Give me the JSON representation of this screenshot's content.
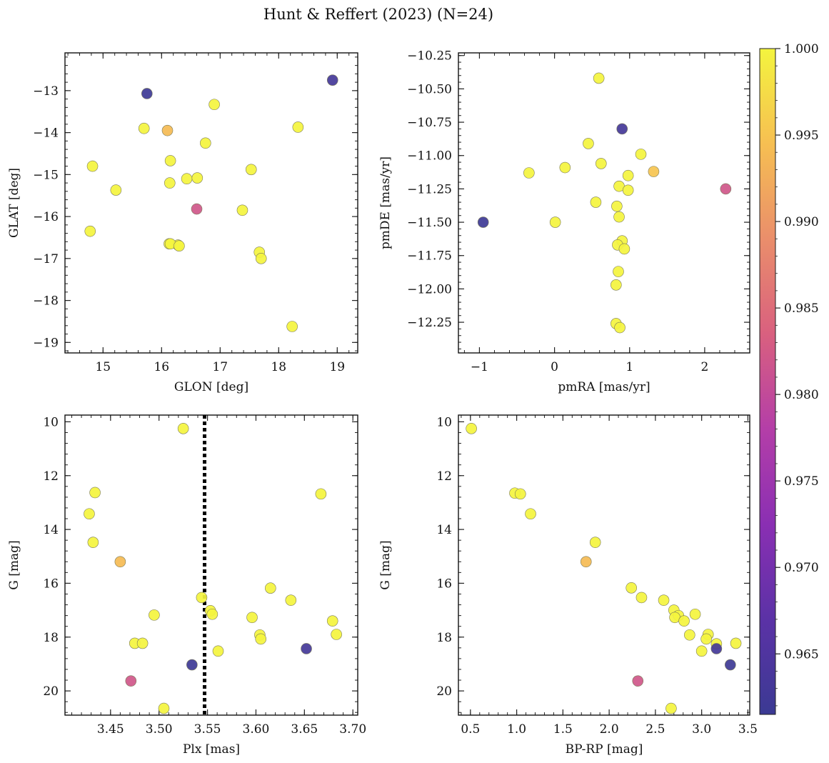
{
  "figure": {
    "title": "Hunt & Reffert (2023) (N=24)"
  },
  "colorbar": {
    "min": 0.9615,
    "max": 1.0,
    "ticks": [
      0.965,
      0.97,
      0.975,
      0.98,
      0.985,
      0.99,
      0.995,
      1.0
    ],
    "tick_labels": [
      "0.965",
      "0.970",
      "0.975",
      "0.980",
      "0.985",
      "0.990",
      "0.995",
      "1.000"
    ],
    "colormap": "plasma",
    "colormap_stops": [
      "#3b3a93",
      "#5b32a6",
      "#8a2fb3",
      "#b43ea8",
      "#d9607f",
      "#ea8e6b",
      "#f6bf52",
      "#f4f43e"
    ]
  },
  "chart_data": [
    {
      "type": "scatter",
      "panel": "sky",
      "xlabel": "GLON [deg]",
      "ylabel": "GLAT [deg]",
      "xlim": [
        14.35,
        19.35
      ],
      "ylim": [
        -19.25,
        -12.1
      ],
      "y_inverted": false,
      "xticks": [
        15,
        16,
        17,
        18,
        19
      ],
      "yticks": [
        -19,
        -18,
        -17,
        -16,
        -15,
        -14,
        -13
      ],
      "xtick_labels": [
        "15",
        "16",
        "17",
        "18",
        "19"
      ],
      "ytick_labels": [
        "−19",
        "−18",
        "−17",
        "−16",
        "−15",
        "−14",
        "−13"
      ],
      "points": [
        {
          "x": 15.75,
          "y": -13.07,
          "c": 0.962
        },
        {
          "x": 18.92,
          "y": -12.75,
          "c": 0.963
        },
        {
          "x": 16.1,
          "y": -13.95,
          "c": 0.994
        },
        {
          "x": 16.6,
          "y": -15.82,
          "c": 0.982
        },
        {
          "x": 16.9,
          "y": -13.33,
          "c": 1.0
        },
        {
          "x": 15.7,
          "y": -13.9,
          "c": 1.0
        },
        {
          "x": 18.33,
          "y": -13.87,
          "c": 1.0
        },
        {
          "x": 16.75,
          "y": -14.25,
          "c": 1.0
        },
        {
          "x": 14.82,
          "y": -14.8,
          "c": 1.0
        },
        {
          "x": 16.15,
          "y": -14.67,
          "c": 1.0
        },
        {
          "x": 17.53,
          "y": -14.88,
          "c": 1.0
        },
        {
          "x": 16.43,
          "y": -15.1,
          "c": 1.0
        },
        {
          "x": 16.61,
          "y": -15.08,
          "c": 1.0
        },
        {
          "x": 15.22,
          "y": -15.37,
          "c": 1.0
        },
        {
          "x": 16.14,
          "y": -15.2,
          "c": 1.0
        },
        {
          "x": 14.78,
          "y": -16.35,
          "c": 1.0
        },
        {
          "x": 17.38,
          "y": -15.85,
          "c": 1.0
        },
        {
          "x": 16.13,
          "y": -16.65,
          "c": 1.0
        },
        {
          "x": 16.28,
          "y": -16.68,
          "c": 1.0
        },
        {
          "x": 17.67,
          "y": -16.85,
          "c": 1.0
        },
        {
          "x": 17.7,
          "y": -17.0,
          "c": 1.0
        },
        {
          "x": 18.23,
          "y": -18.62,
          "c": 1.0
        },
        {
          "x": 16.15,
          "y": -16.65,
          "c": 1.0
        },
        {
          "x": 16.3,
          "y": -16.7,
          "c": 1.0
        }
      ]
    },
    {
      "type": "scatter",
      "panel": "proper-motion",
      "xlabel": "pmRA [mas/yr]",
      "ylabel": "pmDE [mas/yr]",
      "xlim": [
        -1.28,
        2.6
      ],
      "ylim": [
        -12.48,
        -10.23
      ],
      "y_inverted": false,
      "xticks": [
        -1,
        0,
        1,
        2
      ],
      "yticks": [
        -12.25,
        -12.0,
        -11.75,
        -11.5,
        -11.25,
        -11.0,
        -10.75,
        -10.5,
        -10.25
      ],
      "xtick_labels": [
        "−1",
        "0",
        "1",
        "2"
      ],
      "ytick_labels": [
        "−12.25",
        "−12.00",
        "−11.75",
        "−11.50",
        "−11.25",
        "−11.00",
        "−10.75",
        "−10.50",
        "−10.25"
      ],
      "points": [
        {
          "x": 0.59,
          "y": -10.42,
          "c": 1.0
        },
        {
          "x": 0.9,
          "y": -10.8,
          "c": 0.963
        },
        {
          "x": 0.45,
          "y": -10.91,
          "c": 1.0
        },
        {
          "x": 1.15,
          "y": -10.99,
          "c": 1.0
        },
        {
          "x": 0.62,
          "y": -11.06,
          "c": 1.0
        },
        {
          "x": 0.14,
          "y": -11.09,
          "c": 1.0
        },
        {
          "x": -0.34,
          "y": -11.13,
          "c": 1.0
        },
        {
          "x": 1.32,
          "y": -11.12,
          "c": 0.995
        },
        {
          "x": 0.98,
          "y": -11.15,
          "c": 1.0
        },
        {
          "x": 0.86,
          "y": -11.23,
          "c": 1.0
        },
        {
          "x": 0.98,
          "y": -11.26,
          "c": 1.0
        },
        {
          "x": 2.28,
          "y": -11.25,
          "c": 0.982
        },
        {
          "x": 0.55,
          "y": -11.35,
          "c": 1.0
        },
        {
          "x": 0.83,
          "y": -11.38,
          "c": 1.0
        },
        {
          "x": -0.95,
          "y": -11.5,
          "c": 0.962
        },
        {
          "x": 0.01,
          "y": -11.5,
          "c": 1.0
        },
        {
          "x": 0.86,
          "y": -11.46,
          "c": 1.0
        },
        {
          "x": 0.9,
          "y": -11.64,
          "c": 1.0
        },
        {
          "x": 0.84,
          "y": -11.67,
          "c": 1.0
        },
        {
          "x": 0.93,
          "y": -11.7,
          "c": 1.0
        },
        {
          "x": 0.85,
          "y": -11.87,
          "c": 1.0
        },
        {
          "x": 0.82,
          "y": -11.97,
          "c": 1.0
        },
        {
          "x": 0.82,
          "y": -12.26,
          "c": 1.0
        },
        {
          "x": 0.87,
          "y": -12.29,
          "c": 1.0
        }
      ]
    },
    {
      "type": "scatter",
      "panel": "parallax-magnitude",
      "xlabel": "Plx [mas]",
      "ylabel": "G [mag]",
      "xlim": [
        3.403,
        3.705
      ],
      "ylim": [
        20.9,
        9.75
      ],
      "y_inverted": true,
      "xticks": [
        3.45,
        3.5,
        3.55,
        3.6,
        3.65,
        3.7
      ],
      "yticks": [
        10,
        12,
        14,
        16,
        18,
        20
      ],
      "xtick_labels": [
        "3.45",
        "3.50",
        "3.55",
        "3.60",
        "3.65",
        "3.70"
      ],
      "ytick_labels": [
        "10",
        "12",
        "14",
        "16",
        "18",
        "20"
      ],
      "vline": {
        "x": 3.547,
        "style": "dotted"
      },
      "points": [
        {
          "x": 3.525,
          "y": 10.25,
          "c": 1.0
        },
        {
          "x": 3.434,
          "y": 12.63,
          "c": 1.0
        },
        {
          "x": 3.667,
          "y": 12.68,
          "c": 1.0
        },
        {
          "x": 3.428,
          "y": 13.42,
          "c": 1.0
        },
        {
          "x": 3.432,
          "y": 14.48,
          "c": 1.0
        },
        {
          "x": 3.46,
          "y": 15.2,
          "c": 0.994
        },
        {
          "x": 3.615,
          "y": 16.18,
          "c": 1.0
        },
        {
          "x": 3.544,
          "y": 16.53,
          "c": 1.0
        },
        {
          "x": 3.636,
          "y": 16.63,
          "c": 1.0
        },
        {
          "x": 3.553,
          "y": 17.02,
          "c": 1.0
        },
        {
          "x": 3.555,
          "y": 17.15,
          "c": 1.0
        },
        {
          "x": 3.495,
          "y": 17.18,
          "c": 1.0
        },
        {
          "x": 3.596,
          "y": 17.27,
          "c": 1.0
        },
        {
          "x": 3.679,
          "y": 17.4,
          "c": 1.0
        },
        {
          "x": 3.604,
          "y": 17.92,
          "c": 1.0
        },
        {
          "x": 3.683,
          "y": 17.9,
          "c": 1.0
        },
        {
          "x": 3.605,
          "y": 18.07,
          "c": 1.0
        },
        {
          "x": 3.475,
          "y": 18.23,
          "c": 1.0
        },
        {
          "x": 3.483,
          "y": 18.23,
          "c": 1.0
        },
        {
          "x": 3.652,
          "y": 18.43,
          "c": 0.963
        },
        {
          "x": 3.561,
          "y": 18.52,
          "c": 1.0
        },
        {
          "x": 3.534,
          "y": 19.03,
          "c": 0.962
        },
        {
          "x": 3.471,
          "y": 19.63,
          "c": 0.982
        },
        {
          "x": 3.505,
          "y": 20.65,
          "c": 1.0
        }
      ]
    },
    {
      "type": "scatter",
      "panel": "color-magnitude",
      "xlabel": "BP-RP [mag]",
      "ylabel": "G [mag]",
      "xlim": [
        0.37,
        3.52
      ],
      "ylim": [
        20.9,
        9.75
      ],
      "y_inverted": true,
      "xticks": [
        0.5,
        1.0,
        1.5,
        2.0,
        2.5,
        3.0,
        3.5
      ],
      "yticks": [
        10,
        12,
        14,
        16,
        18,
        20
      ],
      "xtick_labels": [
        "0.5",
        "1.0",
        "1.5",
        "2.0",
        "2.5",
        "3.0",
        "3.5"
      ],
      "ytick_labels": [
        "10",
        "12",
        "14",
        "16",
        "18",
        "20"
      ],
      "points": [
        {
          "x": 0.51,
          "y": 10.25,
          "c": 1.0
        },
        {
          "x": 0.98,
          "y": 12.65,
          "c": 1.0
        },
        {
          "x": 1.04,
          "y": 12.68,
          "c": 1.0
        },
        {
          "x": 1.15,
          "y": 13.42,
          "c": 1.0
        },
        {
          "x": 1.85,
          "y": 14.48,
          "c": 1.0
        },
        {
          "x": 1.75,
          "y": 15.2,
          "c": 0.994
        },
        {
          "x": 2.24,
          "y": 16.17,
          "c": 1.0
        },
        {
          "x": 2.35,
          "y": 16.53,
          "c": 1.0
        },
        {
          "x": 2.59,
          "y": 16.63,
          "c": 1.0
        },
        {
          "x": 2.7,
          "y": 17.0,
          "c": 1.0
        },
        {
          "x": 2.75,
          "y": 17.2,
          "c": 1.0
        },
        {
          "x": 2.71,
          "y": 17.27,
          "c": 1.0
        },
        {
          "x": 2.93,
          "y": 17.15,
          "c": 1.0
        },
        {
          "x": 2.81,
          "y": 17.4,
          "c": 1.0
        },
        {
          "x": 2.87,
          "y": 17.92,
          "c": 1.0
        },
        {
          "x": 3.07,
          "y": 17.9,
          "c": 1.0
        },
        {
          "x": 3.05,
          "y": 18.07,
          "c": 1.0
        },
        {
          "x": 3.16,
          "y": 18.25,
          "c": 1.0
        },
        {
          "x": 3.37,
          "y": 18.23,
          "c": 1.0
        },
        {
          "x": 3.16,
          "y": 18.43,
          "c": 0.963
        },
        {
          "x": 3.0,
          "y": 18.52,
          "c": 1.0
        },
        {
          "x": 3.31,
          "y": 19.03,
          "c": 0.962
        },
        {
          "x": 2.31,
          "y": 19.63,
          "c": 0.982
        },
        {
          "x": 2.67,
          "y": 20.65,
          "c": 1.0
        }
      ]
    }
  ]
}
